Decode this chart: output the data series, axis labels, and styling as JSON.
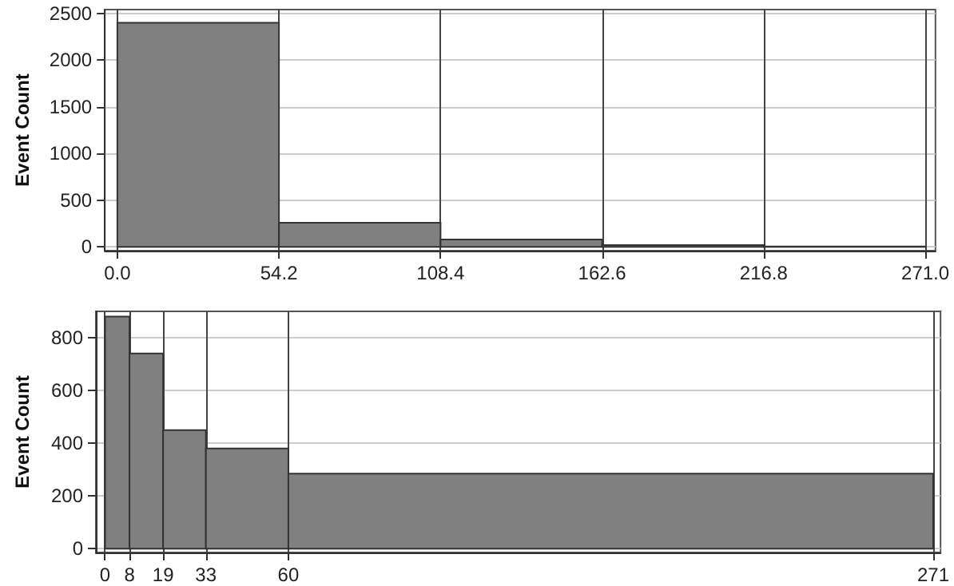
{
  "chart_data": [
    {
      "type": "histogram",
      "ylabel": "Event Count",
      "bins": [
        0,
        54.2,
        108.4,
        162.6,
        216.8,
        271
      ],
      "values": [
        2400,
        260,
        80,
        20,
        5
      ],
      "color": "#808080",
      "xlim": [
        -4.2,
        274.4
      ],
      "ylim": [
        -40,
        2540
      ],
      "xticks": [
        {
          "value": 0,
          "label": "0.0"
        },
        54.2,
        108.4,
        162.6,
        216.8,
        {
          "value": 271,
          "label": "271.0"
        }
      ],
      "yticks": [
        0,
        500,
        1000,
        1500,
        2000,
        2500
      ],
      "grid": true
    },
    {
      "type": "histogram",
      "ylabel": "Event Count",
      "bins": [
        0,
        8,
        19,
        33,
        60,
        271
      ],
      "values": [
        880,
        740,
        450,
        380,
        285
      ],
      "color": "#808080",
      "xlim": [
        -3,
        273.4
      ],
      "ylim": [
        -14,
        900
      ],
      "xticks": [
        0,
        8,
        19,
        33,
        60,
        271
      ],
      "yticks": [
        0,
        200,
        400,
        600,
        800
      ],
      "grid": true
    }
  ]
}
